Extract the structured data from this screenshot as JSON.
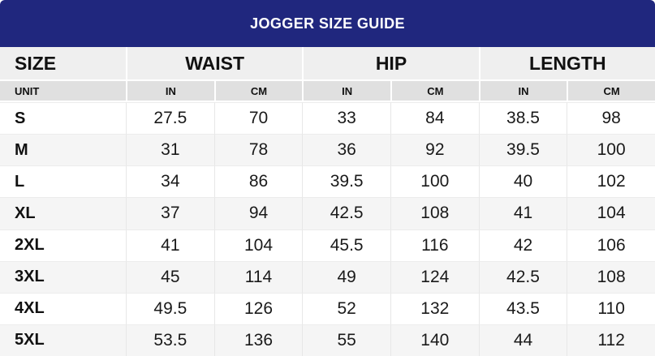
{
  "chart_data": {
    "type": "table",
    "title": "JOGGER SIZE GUIDE",
    "column_groups": [
      {
        "label": "SIZE",
        "span": 1
      },
      {
        "label": "WAIST",
        "span": 2
      },
      {
        "label": "HIP",
        "span": 2
      },
      {
        "label": "LENGTH",
        "span": 2
      }
    ],
    "unit_header": {
      "label": "UNIT",
      "units": [
        "IN",
        "CM",
        "IN",
        "CM",
        "IN",
        "CM"
      ]
    },
    "rows": [
      {
        "size": "S",
        "values": [
          "27.5",
          "70",
          "33",
          "84",
          "38.5",
          "98"
        ]
      },
      {
        "size": "M",
        "values": [
          "31",
          "78",
          "36",
          "92",
          "39.5",
          "100"
        ]
      },
      {
        "size": "L",
        "values": [
          "34",
          "86",
          "39.5",
          "100",
          "40",
          "102"
        ]
      },
      {
        "size": "XL",
        "values": [
          "37",
          "94",
          "42.5",
          "108",
          "41",
          "104"
        ]
      },
      {
        "size": "2XL",
        "values": [
          "41",
          "104",
          "45.5",
          "116",
          "42",
          "106"
        ]
      },
      {
        "size": "3XL",
        "values": [
          "45",
          "114",
          "49",
          "124",
          "42.5",
          "108"
        ]
      },
      {
        "size": "4XL",
        "values": [
          "49.5",
          "126",
          "52",
          "132",
          "43.5",
          "110"
        ]
      },
      {
        "size": "5XL",
        "values": [
          "53.5",
          "136",
          "55",
          "140",
          "44",
          "112"
        ]
      }
    ]
  },
  "colors": {
    "banner_bg": "#20277E",
    "banner_text": "#FFFFFF",
    "group_header_bg": "#EFEFEF",
    "unit_row_bg": "#E0E0E0",
    "row_bg": "#FFFFFF",
    "row_alt_bg": "#F5F5F5",
    "text": "#111111",
    "grid_line": "#E7E7E7"
  }
}
